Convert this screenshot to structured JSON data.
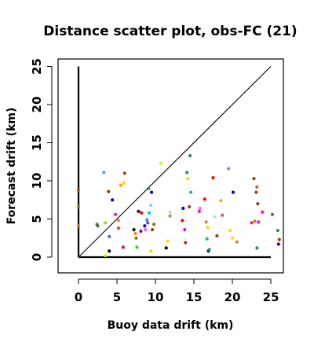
{
  "chart_data": {
    "type": "scatter",
    "title": "Distance scatter plot, obs-FC (21)",
    "xlabel": "Buoy data drift (km)",
    "ylabel": "Forecast drift (km)",
    "xlim": [
      -3,
      26.5
    ],
    "ylim": [
      -2,
      26
    ],
    "x_ticks": [
      0,
      5,
      10,
      15,
      20,
      25
    ],
    "y_ticks": [
      0,
      5,
      10,
      15,
      20,
      25
    ],
    "grid": false,
    "reference_lines": [
      {
        "from": [
          0,
          0
        ],
        "to": [
          25,
          25
        ]
      },
      {
        "from": [
          0,
          0
        ],
        "to": [
          0,
          25
        ]
      },
      {
        "from": [
          0,
          0
        ],
        "to": [
          25,
          0
        ]
      }
    ],
    "points": [
      {
        "x": 0.0,
        "y": 8.8,
        "color": "#a0522d"
      },
      {
        "x": 0.0,
        "y": 6.6,
        "color": "#6b8e23"
      },
      {
        "x": 0.0,
        "y": 4.1,
        "color": "#b8860b"
      },
      {
        "x": 2.4,
        "y": 4.3,
        "color": "#2e8b57"
      },
      {
        "x": 2.5,
        "y": 4.1,
        "color": "#556b2f"
      },
      {
        "x": 3.3,
        "y": 11.1,
        "color": "#6495ed"
      },
      {
        "x": 3.5,
        "y": 4.5,
        "color": "#9acd32"
      },
      {
        "x": 3.5,
        "y": 0.2,
        "color": "#adff2f"
      },
      {
        "x": 3.9,
        "y": 8.6,
        "color": "#8b4513"
      },
      {
        "x": 4.0,
        "y": 2.7,
        "color": "#4169e1"
      },
      {
        "x": 4.4,
        "y": 7.5,
        "color": "#0000cd"
      },
      {
        "x": 4.8,
        "y": 5.6,
        "color": "#ff1493"
      },
      {
        "x": 5.2,
        "y": 4.8,
        "color": "#ff8c00"
      },
      {
        "x": 5.2,
        "y": 3.8,
        "color": "#ff4500"
      },
      {
        "x": 5.5,
        "y": 9.4,
        "color": "#ffa500"
      },
      {
        "x": 5.9,
        "y": 9.7,
        "color": "#ffd700"
      },
      {
        "x": 6.0,
        "y": 11.0,
        "color": "#8b4513"
      },
      {
        "x": 5.8,
        "y": 1.3,
        "color": "#dc143c"
      },
      {
        "x": 4.0,
        "y": 0.8,
        "color": "#000000"
      },
      {
        "x": 7.2,
        "y": 3.6,
        "color": "#000000"
      },
      {
        "x": 7.4,
        "y": 3.1,
        "color": "#ff7f00"
      },
      {
        "x": 7.5,
        "y": 2.5,
        "color": "#808000"
      },
      {
        "x": 7.6,
        "y": 1.3,
        "color": "#32cd32"
      },
      {
        "x": 7.8,
        "y": 6.0,
        "color": "#000000"
      },
      {
        "x": 8.2,
        "y": 5.8,
        "color": "#ff0000"
      },
      {
        "x": 8.1,
        "y": 3.4,
        "color": "#8b008b"
      },
      {
        "x": 8.6,
        "y": 4.1,
        "color": "#0000ff"
      },
      {
        "x": 8.7,
        "y": 3.6,
        "color": "#ff69b4"
      },
      {
        "x": 8.9,
        "y": 4.9,
        "color": "#1e90ff"
      },
      {
        "x": 9.0,
        "y": 4.5,
        "color": "#9932cc"
      },
      {
        "x": 9.1,
        "y": 9.0,
        "color": "#2e8b57"
      },
      {
        "x": 9.2,
        "y": 5.8,
        "color": "#00bfff"
      },
      {
        "x": 9.4,
        "y": 6.8,
        "color": "#87ceeb"
      },
      {
        "x": 9.5,
        "y": 8.5,
        "color": "#0000cd"
      },
      {
        "x": 9.4,
        "y": 0.8,
        "color": "#ffd700"
      },
      {
        "x": 9.8,
        "y": 4.3,
        "color": "#808000"
      },
      {
        "x": 9.6,
        "y": 3.6,
        "color": "#8b4513"
      },
      {
        "x": 10.7,
        "y": 12.3,
        "color": "#adff2f"
      },
      {
        "x": 11.4,
        "y": 1.2,
        "color": "#000000"
      },
      {
        "x": 11.6,
        "y": 2.1,
        "color": "#ffd700"
      },
      {
        "x": 11.9,
        "y": 5.9,
        "color": "#b0e0e6"
      },
      {
        "x": 11.9,
        "y": 5.4,
        "color": "#cd853f"
      },
      {
        "x": 13.6,
        "y": 6.4,
        "color": "#0000cd"
      },
      {
        "x": 13.5,
        "y": 4.8,
        "color": "#ff0000"
      },
      {
        "x": 13.8,
        "y": 3.6,
        "color": "#ff00ff"
      },
      {
        "x": 13.9,
        "y": 1.9,
        "color": "#8b4513"
      },
      {
        "x": 14.1,
        "y": 11.1,
        "color": "#2e8b57"
      },
      {
        "x": 14.2,
        "y": 10.3,
        "color": "#adff2f"
      },
      {
        "x": 14.5,
        "y": 13.3,
        "color": "#2e8b57"
      },
      {
        "x": 14.6,
        "y": 8.5,
        "color": "#20b2aa"
      },
      {
        "x": 14.4,
        "y": 6.6,
        "color": "#8b4513"
      },
      {
        "x": 15.7,
        "y": 6.0,
        "color": "#ff00ff"
      },
      {
        "x": 15.8,
        "y": 6.4,
        "color": "#ff69b4"
      },
      {
        "x": 16.4,
        "y": 7.6,
        "color": "#ff0000"
      },
      {
        "x": 16.6,
        "y": 4.6,
        "color": "#cd853f"
      },
      {
        "x": 16.8,
        "y": 3.9,
        "color": "#ffd700"
      },
      {
        "x": 16.7,
        "y": 2.4,
        "color": "#20b2aa"
      },
      {
        "x": 16.9,
        "y": 0.8,
        "color": "#0000ff"
      },
      {
        "x": 17.0,
        "y": 1.0,
        "color": "#2e8b57"
      },
      {
        "x": 17.5,
        "y": 10.4,
        "color": "#ff0000"
      },
      {
        "x": 17.7,
        "y": 5.3,
        "color": "#b0e0e6"
      },
      {
        "x": 18.0,
        "y": 2.8,
        "color": "#8b4513"
      },
      {
        "x": 18.5,
        "y": 7.4,
        "color": "#ffa500"
      },
      {
        "x": 18.7,
        "y": 5.5,
        "color": "#cd5c5c"
      },
      {
        "x": 19.5,
        "y": 11.6,
        "color": "#6495ed"
      },
      {
        "x": 19.7,
        "y": 3.5,
        "color": "#ffd700"
      },
      {
        "x": 20.1,
        "y": 8.5,
        "color": "#0000cd"
      },
      {
        "x": 20.0,
        "y": 2.5,
        "color": "#ffd700"
      },
      {
        "x": 20.6,
        "y": 2.0,
        "color": "#cd853f"
      },
      {
        "x": 22.5,
        "y": 4.5,
        "color": "#ff1493"
      },
      {
        "x": 22.8,
        "y": 10.3,
        "color": "#8b4513"
      },
      {
        "x": 22.9,
        "y": 4.7,
        "color": "#b8860b"
      },
      {
        "x": 23.1,
        "y": 8.5,
        "color": "#8b4513"
      },
      {
        "x": 23.2,
        "y": 9.2,
        "color": "#cd5c5c"
      },
      {
        "x": 23.3,
        "y": 7.0,
        "color": "#8b4513"
      },
      {
        "x": 23.4,
        "y": 4.6,
        "color": "#ff00ff"
      },
      {
        "x": 23.2,
        "y": 1.2,
        "color": "#2e8b57"
      },
      {
        "x": 23.9,
        "y": 5.9,
        "color": "#ff00ff"
      },
      {
        "x": 25.2,
        "y": 5.6,
        "color": "#a0522d"
      },
      {
        "x": 25.9,
        "y": 3.5,
        "color": "#2e8b57"
      },
      {
        "x": 26.1,
        "y": 2.3,
        "color": "#8b4513"
      },
      {
        "x": 26.0,
        "y": 1.7,
        "color": "#4b0082"
      }
    ]
  }
}
